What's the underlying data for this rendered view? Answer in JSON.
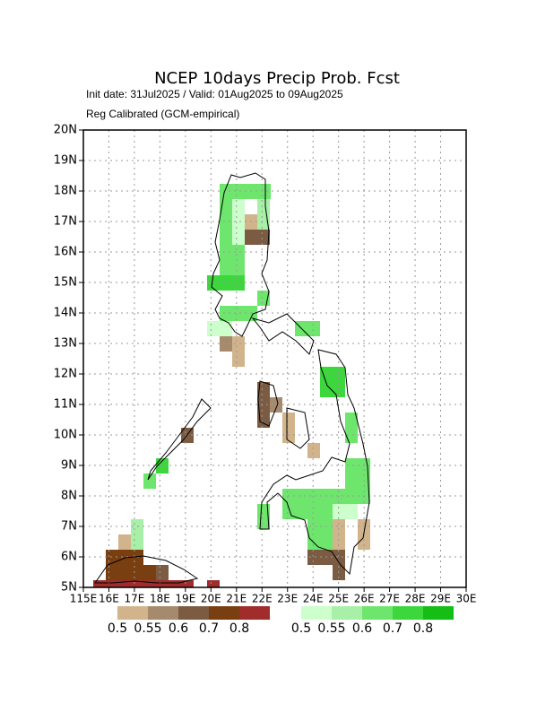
{
  "chart_data": {
    "type": "map",
    "title": "NCEP 10days Precip Prob. Fcst",
    "subtitle": "Init date: 31Jul2025 / Valid: 01Aug2025 to 09Aug2025",
    "subtitle2": "Reg Calibrated (GCM-empirical)",
    "xlim": [
      115,
      130
    ],
    "ylim": [
      5,
      20
    ],
    "grid": true,
    "xticks": [
      {
        "value": 115,
        "label": "115E"
      },
      {
        "value": 116,
        "label": "16E"
      },
      {
        "value": 117,
        "label": "17E"
      },
      {
        "value": 118,
        "label": "18E"
      },
      {
        "value": 119,
        "label": "19E"
      },
      {
        "value": 120,
        "label": "20E"
      },
      {
        "value": 121,
        "label": "21E"
      },
      {
        "value": 122,
        "label": "22E"
      },
      {
        "value": 123,
        "label": "23E"
      },
      {
        "value": 124,
        "label": "24E"
      },
      {
        "value": 125,
        "label": "25E"
      },
      {
        "value": 126,
        "label": "26E"
      },
      {
        "value": 127,
        "label": "27E"
      },
      {
        "value": 128,
        "label": "28E"
      },
      {
        "value": 129,
        "label": "29E"
      },
      {
        "value": 130,
        "label": "30E"
      }
    ],
    "yticks": [
      {
        "value": 5,
        "label": "5N"
      },
      {
        "value": 6,
        "label": "6N"
      },
      {
        "value": 7,
        "label": "7N"
      },
      {
        "value": 8,
        "label": "8N"
      },
      {
        "value": 9,
        "label": "9N"
      },
      {
        "value": 10,
        "label": "10N"
      },
      {
        "value": 11,
        "label": "11N"
      },
      {
        "value": 12,
        "label": "12N"
      },
      {
        "value": 13,
        "label": "13N"
      },
      {
        "value": 14,
        "label": "14N"
      },
      {
        "value": 15,
        "label": "15N"
      },
      {
        "value": 16,
        "label": "16N"
      },
      {
        "value": 17,
        "label": "17N"
      },
      {
        "value": 18,
        "label": "18N"
      },
      {
        "value": 19,
        "label": "19N"
      },
      {
        "value": 20,
        "label": "20N"
      }
    ],
    "legends": [
      {
        "colors": [
          "#d2b48c",
          "#a68a6d",
          "#7b5c43",
          "#7a3f10",
          "#a02c2c"
        ],
        "labels": [
          0.5,
          0.55,
          0.6,
          0.7,
          0.8
        ]
      },
      {
        "colors": [
          "#ccffcc",
          "#a8f0a8",
          "#6ee66e",
          "#3cd73c",
          "#14be14"
        ],
        "labels": [
          0.5,
          0.55,
          0.6,
          0.7,
          0.8
        ]
      }
    ]
  }
}
